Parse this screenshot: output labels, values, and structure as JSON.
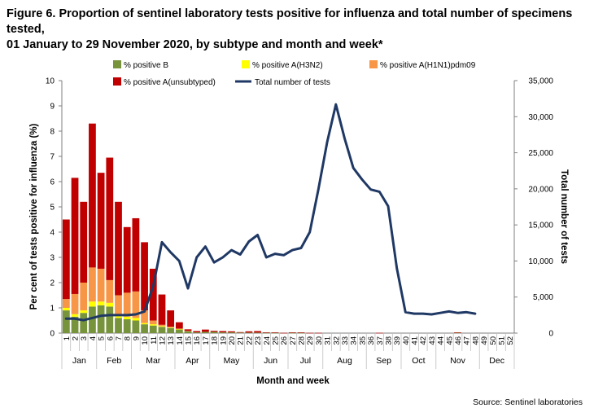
{
  "title_line1": "Figure 6. Proportion of sentinel laboratory tests positive for influenza and total number of specimens tested,",
  "title_line2": "01 January to 29 November 2020, by subtype and month and week*",
  "source": "Source: Sentinel laboratories",
  "chart_data": {
    "type": "bar",
    "xlabel": "Month and week",
    "ylabel": "Per cent of tests positive for influenza (%)",
    "y2label": "Total number of tests",
    "ylim": [
      0,
      10
    ],
    "y2lim": [
      0,
      35000
    ],
    "yticks": [
      "0",
      "1",
      "2",
      "3",
      "4",
      "5",
      "6",
      "7",
      "8",
      "9",
      "10"
    ],
    "y2ticks": [
      "0",
      "5,000",
      "10,000",
      "15,000",
      "20,000",
      "25,000",
      "30,000",
      "35,000"
    ],
    "categories": [
      "1",
      "2",
      "3",
      "4",
      "5",
      "6",
      "7",
      "8",
      "9",
      "10",
      "11",
      "12",
      "13",
      "14",
      "15",
      "16",
      "17",
      "18",
      "19",
      "20",
      "21",
      "22",
      "23",
      "24",
      "25",
      "26",
      "27",
      "28",
      "29",
      "30",
      "31",
      "32",
      "33",
      "34",
      "35",
      "36",
      "37",
      "38",
      "39",
      "40",
      "41",
      "42",
      "43",
      "44",
      "45",
      "46",
      "47",
      "48",
      "49",
      "50",
      "51",
      "52"
    ],
    "months": [
      {
        "label": "Jan",
        "weeks": [
          1,
          4
        ]
      },
      {
        "label": "Feb",
        "weeks": [
          5,
          8
        ]
      },
      {
        "label": "Mar",
        "weeks": [
          9,
          13
        ]
      },
      {
        "label": "Apr",
        "weeks": [
          14,
          17
        ]
      },
      {
        "label": "May",
        "weeks": [
          18,
          22
        ]
      },
      {
        "label": "Jun",
        "weeks": [
          23,
          26
        ]
      },
      {
        "label": "Jul",
        "weeks": [
          27,
          30
        ]
      },
      {
        "label": "Aug",
        "weeks": [
          31,
          35
        ]
      },
      {
        "label": "Sep",
        "weeks": [
          36,
          39
        ]
      },
      {
        "label": "Oct",
        "weeks": [
          40,
          43
        ]
      },
      {
        "label": "Nov",
        "weeks": [
          44,
          48
        ]
      },
      {
        "label": "Dec",
        "weeks": [
          49,
          52
        ]
      }
    ],
    "legend_placement": "top",
    "series": [
      {
        "name": "% positive B",
        "color": "#77933c",
        "values": [
          0.9,
          0.65,
          0.8,
          1.05,
          1.1,
          1.05,
          0.6,
          0.55,
          0.5,
          0.35,
          0.3,
          0.25,
          0.2,
          0.15,
          0.08,
          0.03,
          0.05,
          0.05,
          0.03,
          0.03,
          0.02,
          0.02,
          0.02,
          0.01,
          0.01,
          0,
          0.01,
          0.01,
          0,
          0,
          0,
          0,
          0,
          0,
          0,
          0,
          0,
          0,
          0,
          0,
          0,
          0,
          0,
          0,
          0,
          0.02,
          0,
          0,
          0,
          0,
          0,
          0
        ]
      },
      {
        "name": "% positive A(H3N2)",
        "color": "#ffff00",
        "values": [
          0.1,
          0.1,
          0.1,
          0.2,
          0.15,
          0.15,
          0.1,
          0.1,
          0.1,
          0.05,
          0.05,
          0.03,
          0.02,
          0.01,
          0,
          0,
          0,
          0,
          0,
          0,
          0,
          0,
          0,
          0,
          0,
          0,
          0,
          0,
          0,
          0,
          0,
          0,
          0,
          0,
          0,
          0,
          0,
          0,
          0,
          0,
          0,
          0,
          0,
          0,
          0,
          0,
          0,
          0,
          0,
          0,
          0,
          0
        ]
      },
      {
        "name": "% positive A(H1N1)pdm09",
        "color": "#f79646",
        "values": [
          0.35,
          0.8,
          1.1,
          1.35,
          1.3,
          0.9,
          0.8,
          0.95,
          1.05,
          0.5,
          0.15,
          0.05,
          0.03,
          0.02,
          0.01,
          0,
          0,
          0,
          0,
          0,
          0,
          0,
          0,
          0,
          0,
          0,
          0,
          0,
          0,
          0,
          0,
          0,
          0,
          0,
          0,
          0,
          0,
          0,
          0,
          0,
          0,
          0,
          0,
          0,
          0,
          0,
          0,
          0,
          0,
          0,
          0,
          0
        ]
      },
      {
        "name": "% positive A(unsubtyped)",
        "color": "#c00000",
        "values": [
          3.15,
          4.6,
          3.2,
          5.7,
          3.8,
          4.85,
          3.7,
          2.6,
          2.9,
          2.7,
          2.05,
          1.2,
          0.65,
          0.25,
          0.06,
          0.05,
          0.09,
          0.04,
          0.05,
          0.04,
          0.02,
          0.05,
          0.06,
          0.02,
          0.02,
          0.01,
          0.02,
          0.02,
          0.01,
          0.01,
          0,
          0,
          0,
          0,
          0,
          0,
          0.01,
          0,
          0,
          0,
          0,
          0,
          0,
          0,
          0,
          0.01,
          0,
          0,
          0,
          0,
          0,
          0
        ]
      },
      {
        "name": "Total number of tests",
        "color": "#1f3864",
        "type": "line",
        "axis": "right",
        "values": [
          2000,
          2000,
          1800,
          2100,
          2400,
          2500,
          2500,
          2500,
          2600,
          3000,
          6500,
          12600,
          11200,
          10000,
          6200,
          10500,
          12000,
          9800,
          10500,
          11500,
          10900,
          12700,
          13600,
          10500,
          11000,
          10800,
          11500,
          11800,
          14000,
          20000,
          26500,
          31700,
          27000,
          22900,
          21300,
          19900,
          19600,
          17600,
          9000,
          2900,
          2700,
          2700,
          2600,
          2800,
          3000,
          2800,
          2900,
          2700,
          null,
          null,
          null,
          null
        ]
      }
    ]
  }
}
